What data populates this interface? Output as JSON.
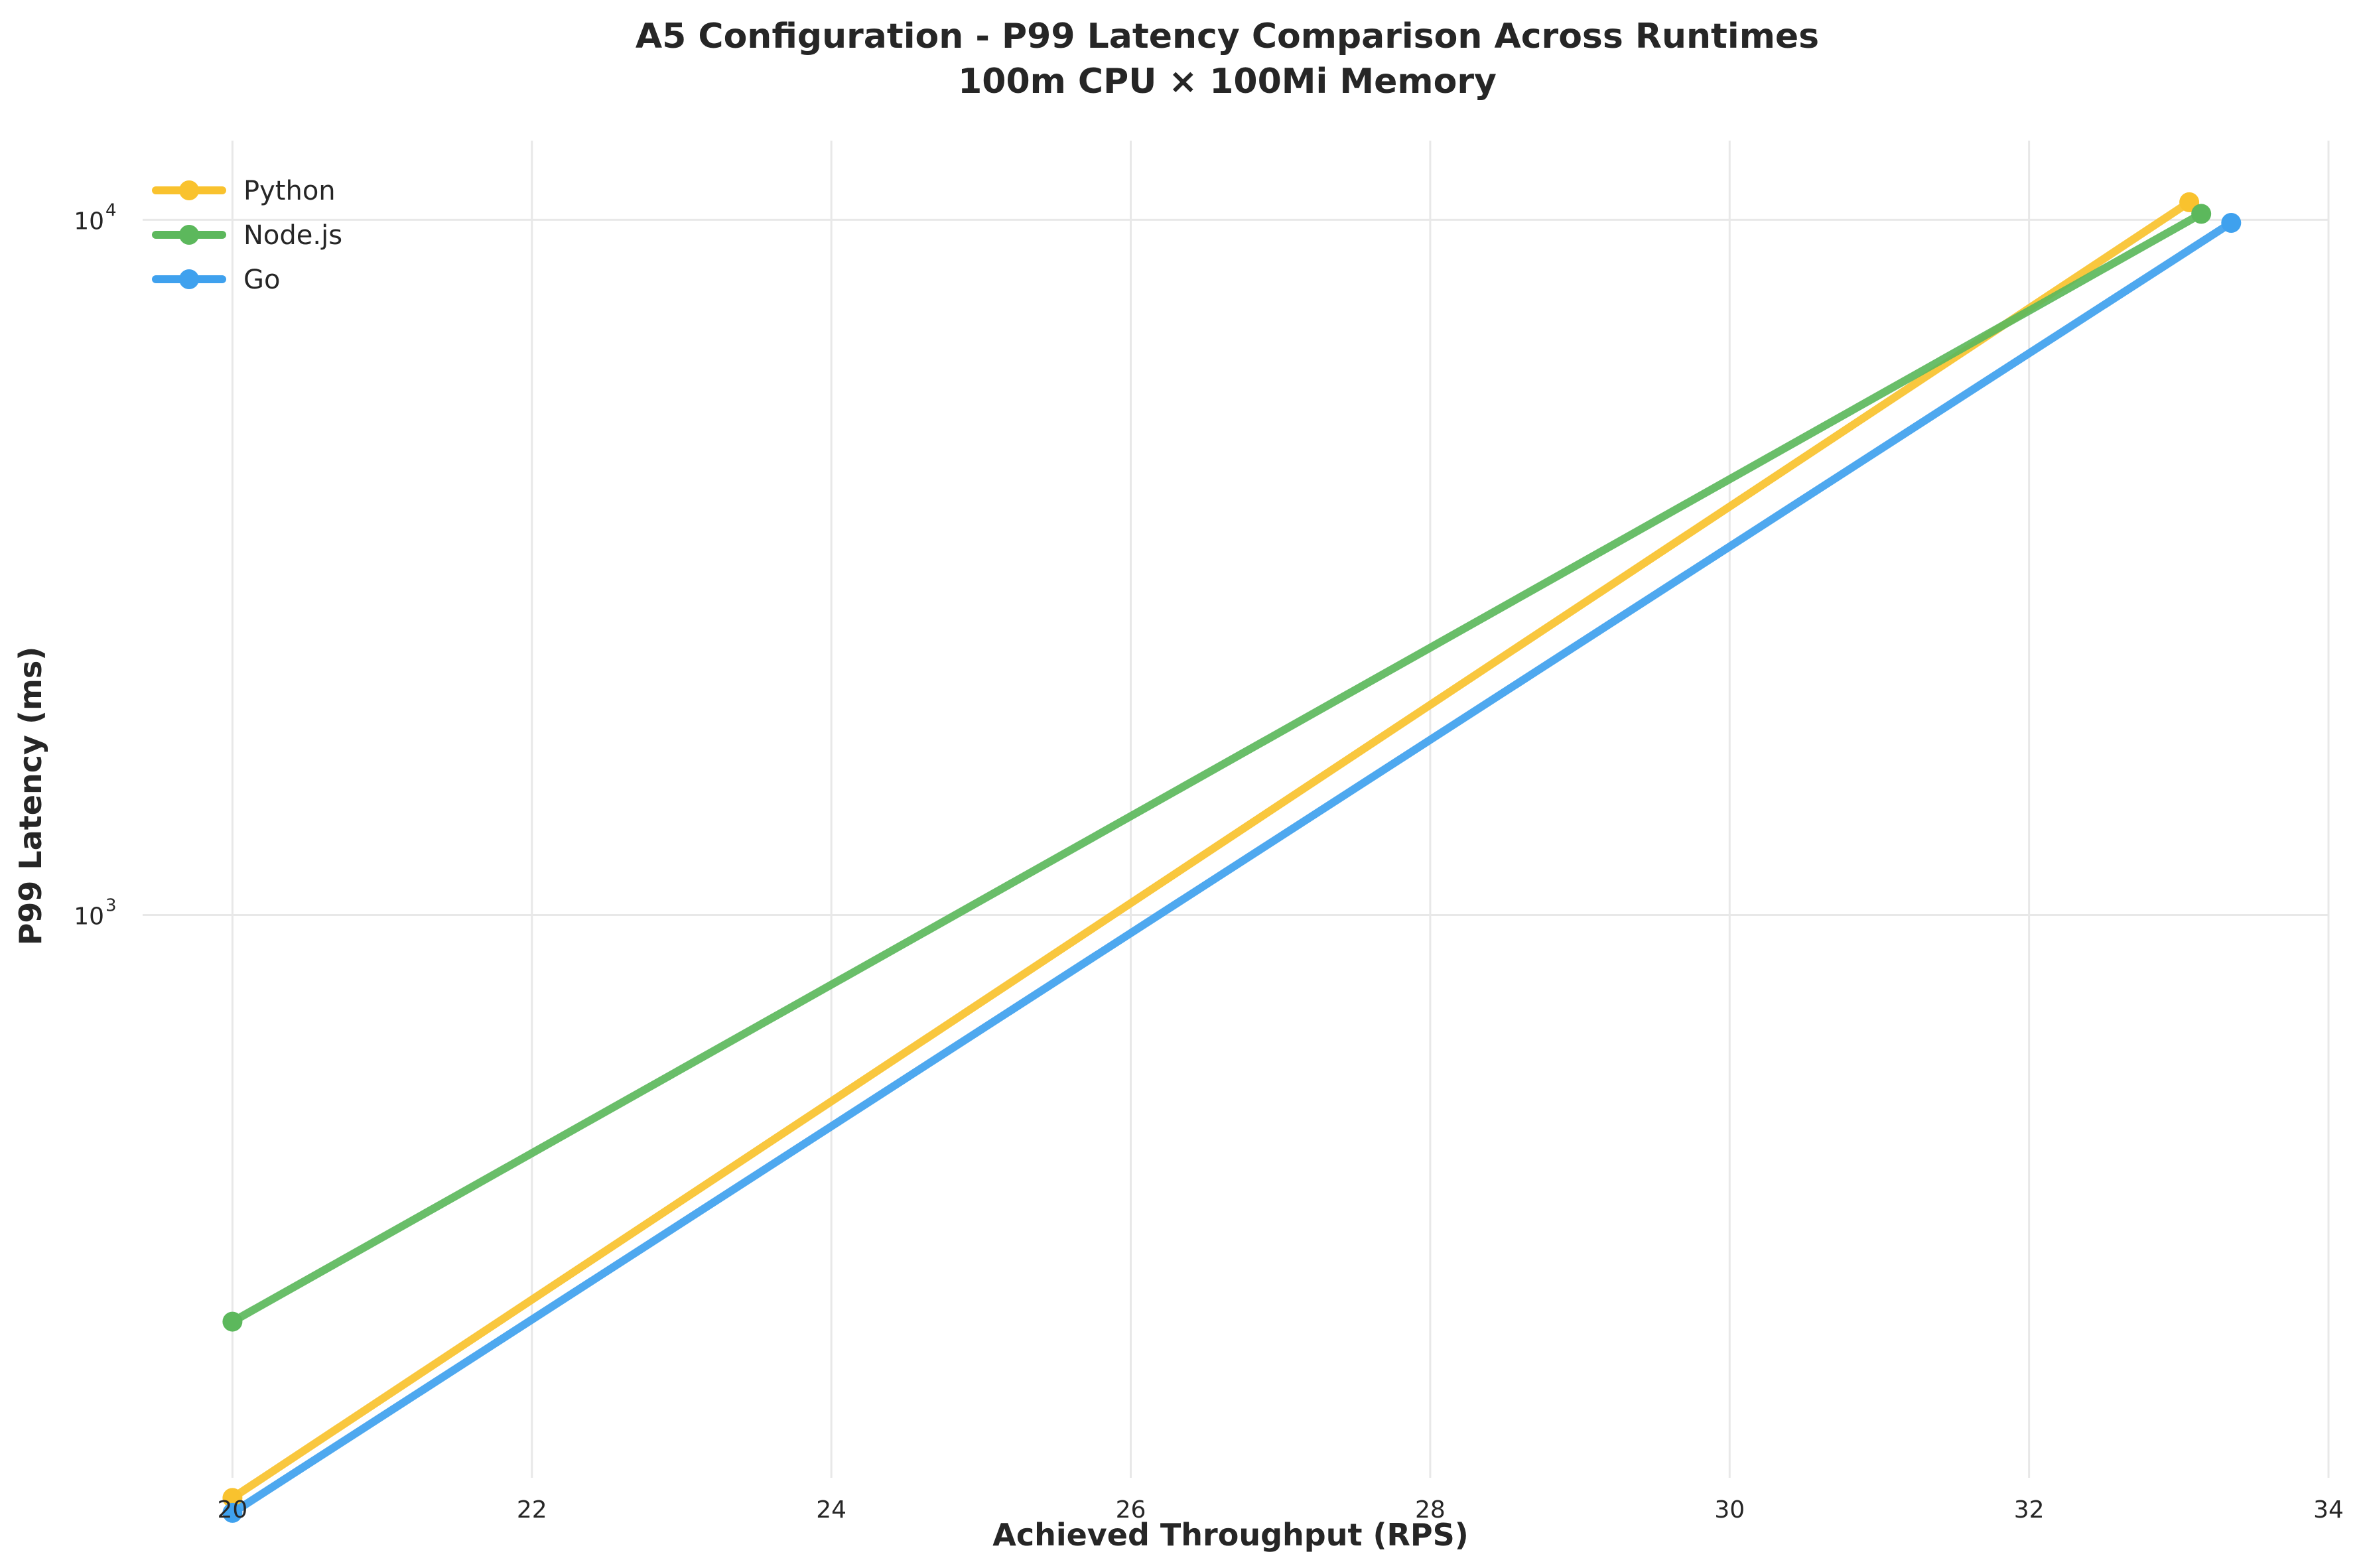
{
  "chart_data": {
    "type": "line",
    "title": "A5 Configuration - P99 Latency Comparison Across Runtimes",
    "subtitle": "100m CPU × 100Mi Memory",
    "xlabel": "Achieved Throughput (RPS)",
    "ylabel": "P99 Latency (ms)",
    "xlim": [
      19.4,
      34.0
    ],
    "ylim": [
      155,
      13000
    ],
    "yscale": "log",
    "xticks": [
      20,
      22,
      24,
      26,
      28,
      30,
      32,
      34
    ],
    "yticks": [
      {
        "value": 1000,
        "base": "10",
        "exp": "3"
      },
      {
        "value": 10000,
        "base": "10",
        "exp": "4"
      }
    ],
    "grid": true,
    "legend_position": "top-left",
    "series": [
      {
        "name": "Python",
        "color": "#f9c22e",
        "x": [
          20.0,
          33.07
        ],
        "y": [
          145,
          10600
        ]
      },
      {
        "name": "Node.js",
        "color": "#5cb85c",
        "x": [
          20.0,
          33.15
        ],
        "y": [
          260,
          10200
        ]
      },
      {
        "name": "Go",
        "color": "#3fa1ee",
        "x": [
          20.0,
          33.35
        ],
        "y": [
          138,
          9900
        ]
      }
    ]
  }
}
